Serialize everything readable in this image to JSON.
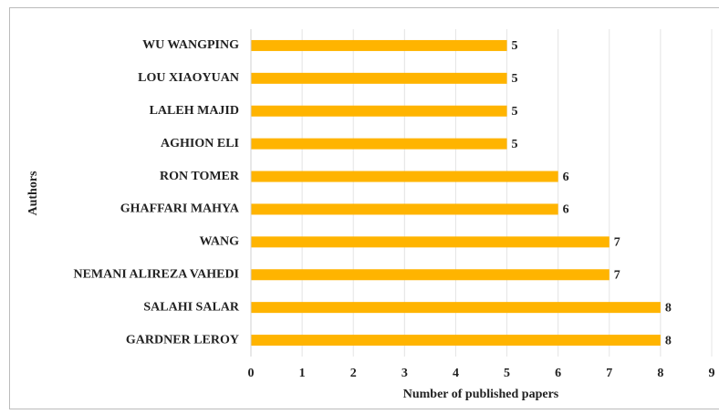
{
  "chart_data": {
    "type": "bar",
    "categories": [
      "WU WANGPING",
      "LOU XIAOYUAN",
      "LALEH MAJID",
      "AGHION ELI",
      "RON TOMER",
      "GHAFFARI MAHYA",
      "WANG",
      "NEMANI ALIREZA VAHEDI",
      "SALAHI SALAR",
      "GARDNER LEROY"
    ],
    "values": [
      5,
      5,
      5,
      5,
      6,
      6,
      7,
      7,
      8,
      8
    ],
    "color": "#ffb400",
    "x_label": "Number of published papers",
    "y_label": "Authors",
    "xlim": [
      0,
      9
    ],
    "xticks": [
      0,
      1,
      2,
      3,
      4,
      5,
      6,
      7,
      8,
      9
    ],
    "grid": true
  }
}
